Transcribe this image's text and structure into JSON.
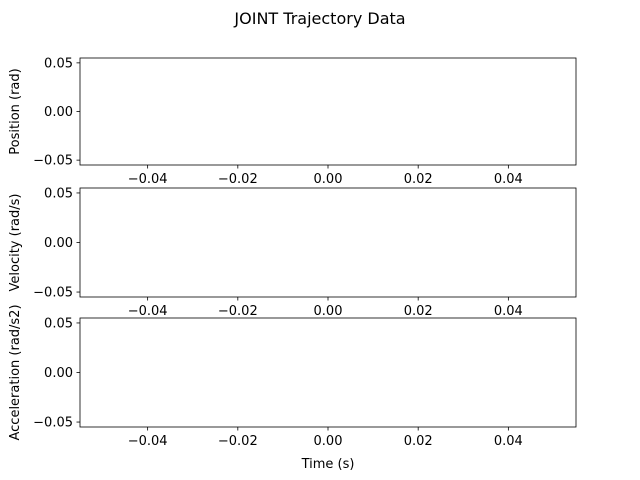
{
  "figure": {
    "title": "JOINT Trajectory Data"
  },
  "chart_data": [
    {
      "type": "line",
      "title": "",
      "xlabel": "",
      "ylabel": "Position (rad)",
      "xlim": [
        -0.055,
        0.055
      ],
      "ylim": [
        -0.055,
        0.055
      ],
      "xticks": [
        -0.04,
        -0.02,
        0.0,
        0.02,
        0.04
      ],
      "xtick_labels": [
        "−0.04",
        "−0.02",
        "0.00",
        "0.02",
        "0.04"
      ],
      "yticks": [
        0.05,
        0.0,
        -0.05
      ],
      "ytick_labels": [
        "0.05",
        "0.00",
        "−0.05"
      ],
      "grid": false,
      "series": []
    },
    {
      "type": "line",
      "title": "",
      "xlabel": "",
      "ylabel": "Velocity (rad/s)",
      "xlim": [
        -0.055,
        0.055
      ],
      "ylim": [
        -0.055,
        0.055
      ],
      "xticks": [
        -0.04,
        -0.02,
        0.0,
        0.02,
        0.04
      ],
      "xtick_labels": [
        "−0.04",
        "−0.02",
        "0.00",
        "0.02",
        "0.04"
      ],
      "yticks": [
        0.05,
        0.0,
        -0.05
      ],
      "ytick_labels": [
        "0.05",
        "0.00",
        "−0.05"
      ],
      "grid": false,
      "series": []
    },
    {
      "type": "line",
      "title": "",
      "xlabel": "Time (s)",
      "ylabel": "Acceleration (rad/s2)",
      "xlim": [
        -0.055,
        0.055
      ],
      "ylim": [
        -0.055,
        0.055
      ],
      "xticks": [
        -0.04,
        -0.02,
        0.0,
        0.02,
        0.04
      ],
      "xtick_labels": [
        "−0.04",
        "−0.02",
        "0.00",
        "0.02",
        "0.04"
      ],
      "yticks": [
        0.05,
        0.0,
        -0.05
      ],
      "ytick_labels": [
        "0.05",
        "0.00",
        "−0.05"
      ],
      "grid": false,
      "series": []
    }
  ]
}
